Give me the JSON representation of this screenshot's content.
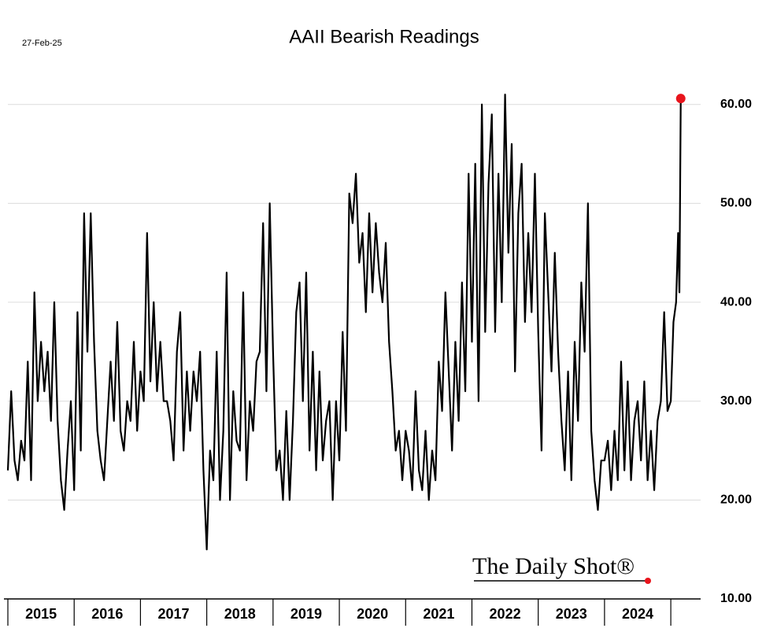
{
  "chart_data": {
    "type": "line",
    "title": "AAII Bearish Readings",
    "date": "27-Feb-25",
    "watermark": "The Daily Shot®",
    "x": [
      2015,
      2015.05,
      2015.1,
      2015.15,
      2015.2,
      2015.25,
      2015.3,
      2015.35,
      2015.4,
      2015.45,
      2015.5,
      2015.55,
      2015.6,
      2015.65,
      2015.7,
      2015.75,
      2015.8,
      2015.85,
      2015.9,
      2015.95,
      2016,
      2016.05,
      2016.1,
      2016.15,
      2016.2,
      2016.25,
      2016.3,
      2016.35,
      2016.4,
      2016.45,
      2016.5,
      2016.55,
      2016.6,
      2016.65,
      2016.7,
      2016.75,
      2016.8,
      2016.85,
      2016.9,
      2016.95,
      2017,
      2017.05,
      2017.1,
      2017.15,
      2017.2,
      2017.25,
      2017.3,
      2017.35,
      2017.4,
      2017.45,
      2017.5,
      2017.55,
      2017.6,
      2017.65,
      2017.7,
      2017.75,
      2017.8,
      2017.85,
      2017.9,
      2017.95,
      2018,
      2018.05,
      2018.1,
      2018.15,
      2018.2,
      2018.25,
      2018.3,
      2018.35,
      2018.4,
      2018.45,
      2018.5,
      2018.55,
      2018.6,
      2018.65,
      2018.7,
      2018.75,
      2018.8,
      2018.85,
      2018.9,
      2018.95,
      2019,
      2019.05,
      2019.1,
      2019.15,
      2019.2,
      2019.25,
      2019.3,
      2019.35,
      2019.4,
      2019.45,
      2019.5,
      2019.55,
      2019.6,
      2019.65,
      2019.7,
      2019.75,
      2019.8,
      2019.85,
      2019.9,
      2019.95,
      2020,
      2020.05,
      2020.1,
      2020.15,
      2020.2,
      2020.25,
      2020.3,
      2020.35,
      2020.4,
      2020.45,
      2020.5,
      2020.55,
      2020.6,
      2020.65,
      2020.7,
      2020.75,
      2020.8,
      2020.85,
      2020.9,
      2020.95,
      2021,
      2021.05,
      2021.1,
      2021.15,
      2021.2,
      2021.25,
      2021.3,
      2021.35,
      2021.4,
      2021.45,
      2021.5,
      2021.55,
      2021.6,
      2021.65,
      2021.7,
      2021.75,
      2021.8,
      2021.85,
      2021.9,
      2021.95,
      2022,
      2022.05,
      2022.1,
      2022.15,
      2022.2,
      2022.25,
      2022.3,
      2022.35,
      2022.4,
      2022.45,
      2022.5,
      2022.55,
      2022.6,
      2022.65,
      2022.7,
      2022.75,
      2022.8,
      2022.85,
      2022.9,
      2022.95,
      2023,
      2023.05,
      2023.1,
      2023.15,
      2023.2,
      2023.25,
      2023.3,
      2023.35,
      2023.4,
      2023.45,
      2023.5,
      2023.55,
      2023.6,
      2023.65,
      2023.7,
      2023.75,
      2023.8,
      2023.85,
      2023.9,
      2023.95,
      2024,
      2024.05,
      2024.1,
      2024.15,
      2024.2,
      2024.25,
      2024.3,
      2024.35,
      2024.4,
      2024.45,
      2024.5,
      2024.55,
      2024.6,
      2024.65,
      2024.7,
      2024.75,
      2024.8,
      2024.85,
      2024.9,
      2024.95,
      2025,
      2025.04,
      2025.08,
      2025.11,
      2025.13,
      2025.15
    ],
    "series": [
      {
        "name": "AAII Bearish",
        "color": "#000000",
        "values": [
          23,
          31,
          24,
          22,
          26,
          24,
          34,
          22,
          41,
          30,
          36,
          31,
          35,
          28,
          40,
          28,
          22,
          19,
          25,
          30,
          21,
          39,
          25,
          49,
          35,
          49,
          36,
          27,
          24,
          22,
          28,
          34,
          28,
          38,
          27,
          25,
          30,
          28,
          36,
          27,
          33,
          30,
          47,
          32,
          40,
          31,
          36,
          30,
          30,
          28,
          24,
          35,
          39,
          25,
          33,
          27,
          33,
          30,
          35,
          23,
          15,
          25,
          22,
          35,
          20,
          27,
          43,
          20,
          31,
          26,
          25,
          41,
          22,
          30,
          27,
          34,
          35,
          48,
          31,
          50,
          35,
          23,
          25,
          20,
          29,
          20,
          28,
          39,
          42,
          30,
          43,
          25,
          35,
          23,
          33,
          24,
          28,
          30,
          20,
          30,
          24,
          37,
          27,
          51,
          48,
          53,
          44,
          47,
          39,
          49,
          41,
          48,
          43,
          40,
          46,
          36,
          31,
          25,
          27,
          22,
          27,
          25,
          21,
          31,
          23,
          21,
          27,
          20,
          25,
          22,
          34,
          29,
          41,
          33,
          25,
          36,
          28,
          42,
          31,
          53,
          36,
          54,
          30,
          60,
          37,
          52,
          59,
          37,
          53,
          40,
          61,
          45,
          56,
          33,
          49,
          54,
          38,
          47,
          39,
          53,
          37,
          25,
          49,
          41,
          33,
          45,
          35,
          28,
          23,
          33,
          22,
          36,
          28,
          42,
          35,
          50,
          27,
          22,
          19,
          24,
          24,
          26,
          21,
          27,
          22,
          34,
          23,
          32,
          22,
          28,
          30,
          24,
          32,
          22,
          27,
          21,
          28,
          30,
          39,
          29,
          30,
          38,
          40,
          47,
          41,
          60.6
        ]
      }
    ],
    "highlight_last_color": "#e8141c",
    "xlim": [
      2015,
      2025.45
    ],
    "xticks": [
      2015,
      2016,
      2017,
      2018,
      2019,
      2020,
      2021,
      2022,
      2023,
      2024,
      2025
    ],
    "xtick_labels": [
      2015,
      2016,
      2017,
      2018,
      2019,
      2020,
      2021,
      2022,
      2023,
      2024
    ],
    "ylim": [
      10,
      63.4
    ],
    "yticks": [
      {
        "value": 10,
        "label": "10.00"
      },
      {
        "value": 20,
        "label": "20.00"
      },
      {
        "value": 30,
        "label": "30.00"
      },
      {
        "value": 40,
        "label": "40.00"
      },
      {
        "value": 50,
        "label": "50.00"
      },
      {
        "value": 60,
        "label": "60.00"
      }
    ],
    "grid": true
  }
}
